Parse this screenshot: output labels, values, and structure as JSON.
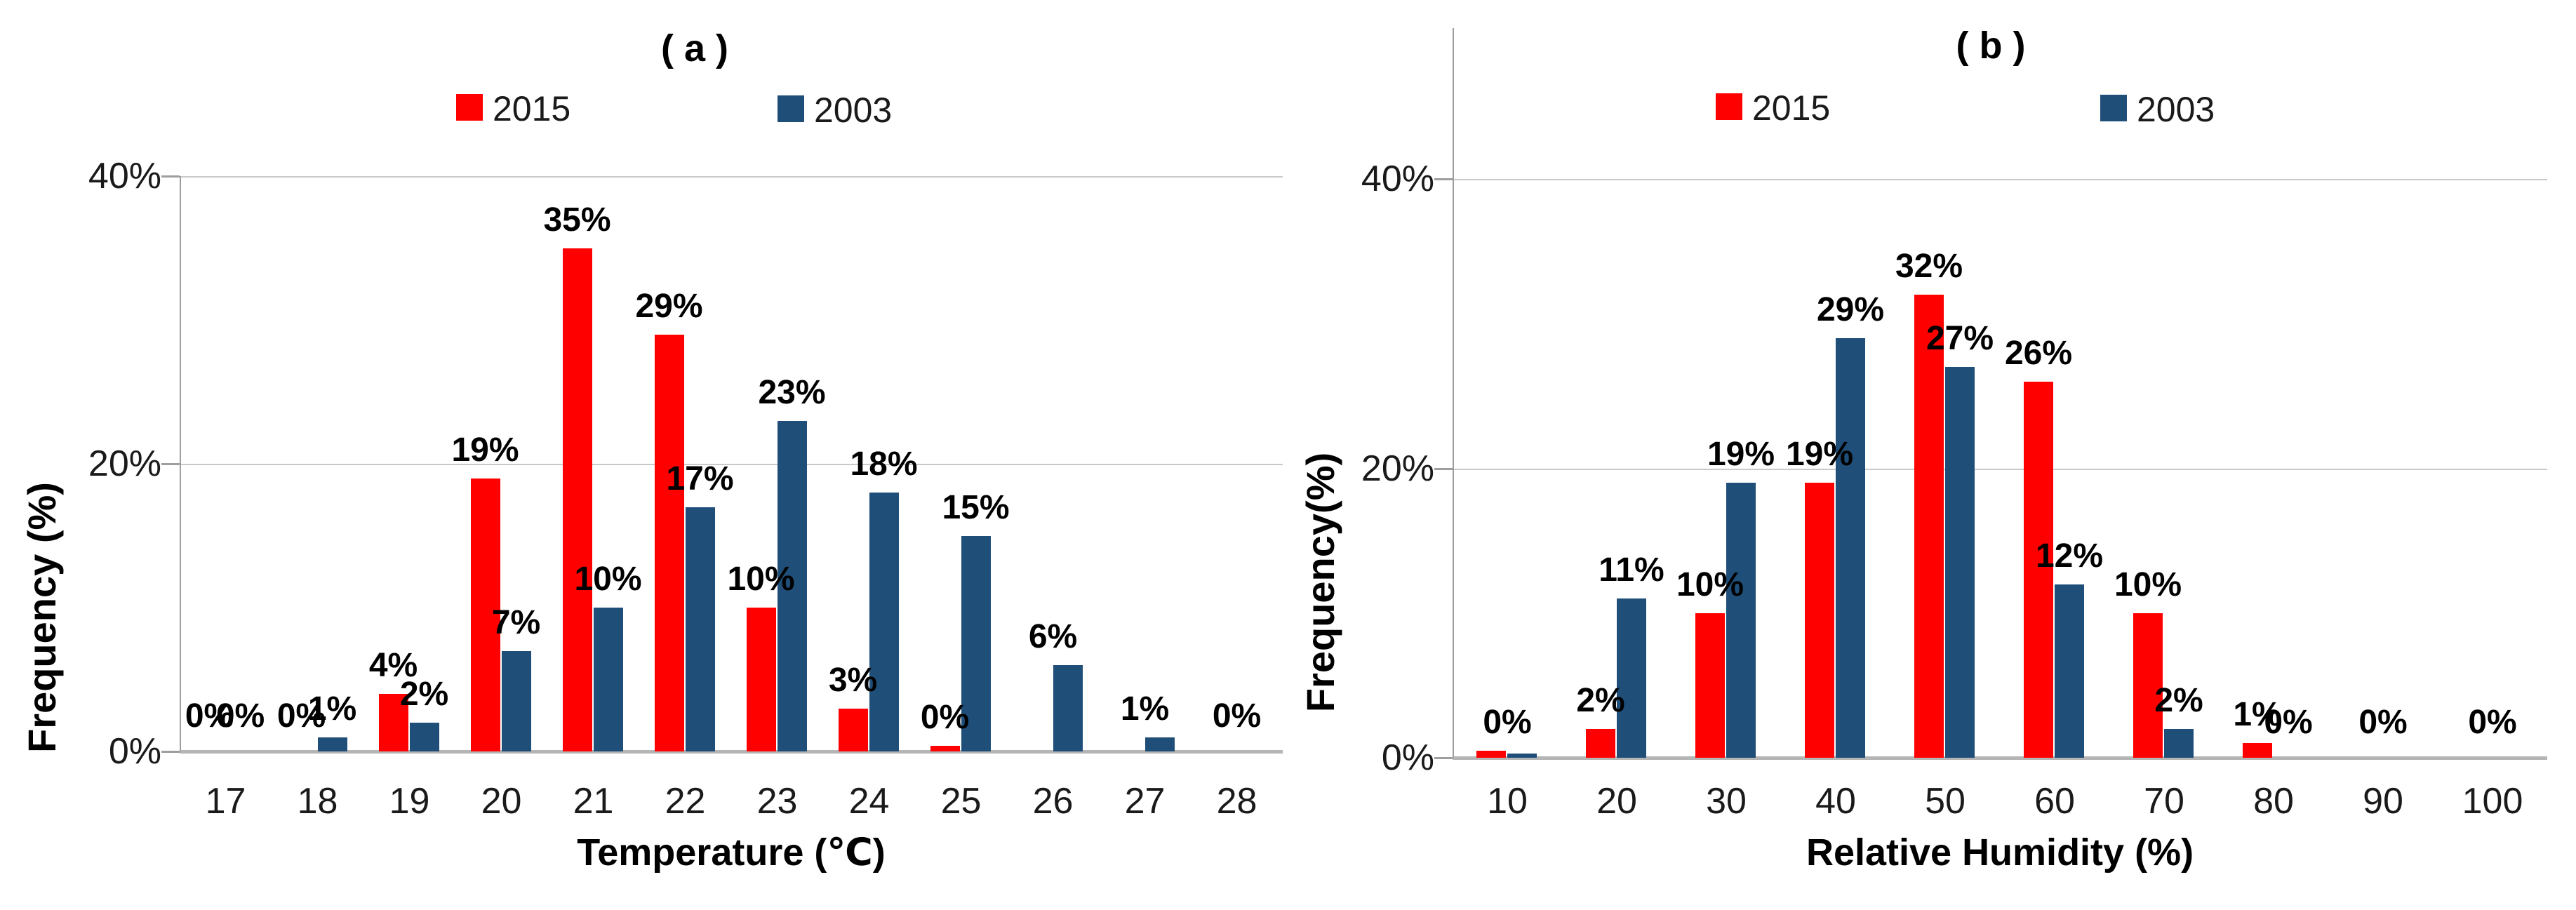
{
  "figure": {
    "background": "#FFFFFF",
    "text_color": "#000000",
    "grid_color": "#C9C9C9",
    "axis_line_color": "#B5B5B5",
    "yaxis_line_color": "#9E9E9E",
    "series_colors": {
      "y2015": "#FF0000",
      "y2003": "#1F4E79"
    }
  },
  "chart_data": [
    {
      "id": "a",
      "type": "bar",
      "title": "( a )",
      "xlabel": "Temperature (℃)",
      "ylabel": "Frequency (%)",
      "legend_position": "top",
      "grid": "horizontal",
      "ylim": [
        0,
        40
      ],
      "yticks": [
        {
          "label": "0%",
          "value": 0
        },
        {
          "label": "20%",
          "value": 20
        },
        {
          "label": "40%",
          "value": 40
        }
      ],
      "categories": [
        "17",
        "18",
        "19",
        "20",
        "21",
        "22",
        "23",
        "24",
        "25",
        "26",
        "27",
        "28"
      ],
      "series": [
        {
          "name": "2015",
          "color": "#FF0000",
          "values": [
            0,
            0,
            4,
            19,
            35,
            29,
            10,
            3,
            0,
            null,
            null,
            null
          ],
          "bar_heights": [
            0,
            0,
            4,
            19,
            35,
            29,
            10,
            3,
            0.4,
            null,
            null,
            null
          ],
          "labels": [
            "0%",
            "0%",
            "4%",
            "19%",
            "35%",
            "29%",
            "10%",
            "3%",
            "0%",
            null,
            null,
            null
          ]
        },
        {
          "name": "2003",
          "color": "#1F4E79",
          "values": [
            0,
            1,
            2,
            7,
            10,
            17,
            23,
            18,
            15,
            6,
            1,
            0
          ],
          "bar_heights": [
            0,
            1,
            2,
            7,
            10,
            17,
            23,
            18,
            15,
            6,
            1,
            0
          ],
          "labels": [
            "0%",
            "1%",
            "2%",
            "7%",
            "10%",
            "17%",
            "23%",
            "18%",
            "15%",
            "6%",
            "1%",
            "0%"
          ]
        }
      ]
    },
    {
      "id": "b",
      "type": "bar",
      "title": "( b )",
      "xlabel": "Relative Humidity (%)",
      "ylabel": "Frequency(%)",
      "legend_position": "top",
      "grid": "horizontal",
      "ylim": [
        0,
        40
      ],
      "yticks": [
        {
          "label": "0%",
          "value": 0
        },
        {
          "label": "20%",
          "value": 20
        },
        {
          "label": "40%",
          "value": 40
        }
      ],
      "categories": [
        "10",
        "20",
        "30",
        "40",
        "50",
        "60",
        "70",
        "80",
        "90",
        "100"
      ],
      "series": [
        {
          "name": "2015",
          "color": "#FF0000",
          "values": [
            0,
            2,
            10,
            19,
            32,
            26,
            10,
            1,
            0,
            0
          ],
          "bar_heights": [
            0.5,
            2,
            10,
            19,
            32,
            26,
            10,
            1,
            0,
            0
          ],
          "labels": [
            "0%",
            "2%",
            "10%",
            "19%",
            "32%",
            "26%",
            "10%",
            "1%",
            "0%",
            "0%"
          ]
        },
        {
          "name": "2003",
          "color": "#1F4E79",
          "values": [
            0,
            11,
            19,
            29,
            27,
            12,
            2,
            0,
            null,
            null
          ],
          "bar_heights": [
            0.3,
            11,
            19,
            29,
            27,
            12,
            2,
            0,
            null,
            null
          ],
          "labels": [
            null,
            "11%",
            "19%",
            "29%",
            "27%",
            "12%",
            "2%",
            "0%",
            null,
            null
          ]
        }
      ]
    }
  ]
}
